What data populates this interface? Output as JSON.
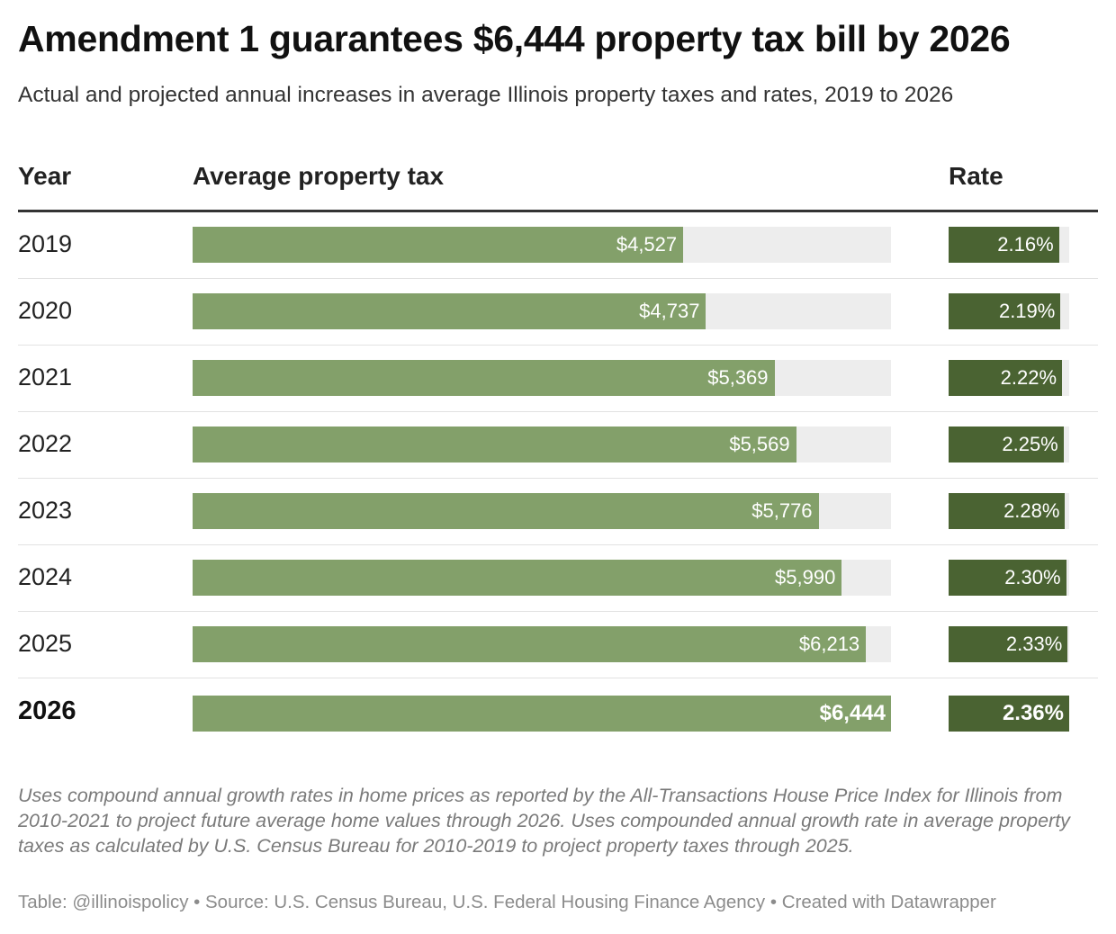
{
  "title": "Amendment 1 guarantees $6,444 property tax bill by 2026",
  "subtitle": "Actual and projected annual increases in average Illinois property taxes and rates, 2019 to 2026",
  "headers": {
    "year": "Year",
    "tax": "Average property tax",
    "rate": "Rate"
  },
  "notes": "Uses compound annual growth rates in home prices as reported by the All-Transactions House Price Index for Illinois from 2010-2021 to project future average home values through 2026. Uses compounded annual growth rate in average property taxes as calculated by U.S. Census Bureau for 2010-2019 to project property taxes through 2025.",
  "source": "Table: @illinoispolicy • Source: U.S. Census Bureau, U.S. Federal Housing Finance Agency • Created with Datawrapper",
  "colors": {
    "tax_bar": "#83a06a",
    "rate_bar": "#4a6332",
    "track": "#ededed"
  },
  "chart_data": {
    "type": "table",
    "columns": [
      "Year",
      "Average property tax",
      "Rate"
    ],
    "tax_max": 6444,
    "rate_max": 2.36,
    "rows": [
      {
        "year": "2019",
        "tax": 4527,
        "tax_label": "$4,527",
        "rate": 2.16,
        "rate_label": "2.16%",
        "bold": false
      },
      {
        "year": "2020",
        "tax": 4737,
        "tax_label": "$4,737",
        "rate": 2.19,
        "rate_label": "2.19%",
        "bold": false
      },
      {
        "year": "2021",
        "tax": 5369,
        "tax_label": "$5,369",
        "rate": 2.22,
        "rate_label": "2.22%",
        "bold": false
      },
      {
        "year": "2022",
        "tax": 5569,
        "tax_label": "$5,569",
        "rate": 2.25,
        "rate_label": "2.25%",
        "bold": false
      },
      {
        "year": "2023",
        "tax": 5776,
        "tax_label": "$5,776",
        "rate": 2.28,
        "rate_label": "2.28%",
        "bold": false
      },
      {
        "year": "2024",
        "tax": 5990,
        "tax_label": "$5,990",
        "rate": 2.3,
        "rate_label": "2.30%",
        "bold": false
      },
      {
        "year": "2025",
        "tax": 6213,
        "tax_label": "$6,213",
        "rate": 2.33,
        "rate_label": "2.33%",
        "bold": false
      },
      {
        "year": "2026",
        "tax": 6444,
        "tax_label": "$6,444",
        "rate": 2.36,
        "rate_label": "2.36%",
        "bold": true
      }
    ]
  }
}
